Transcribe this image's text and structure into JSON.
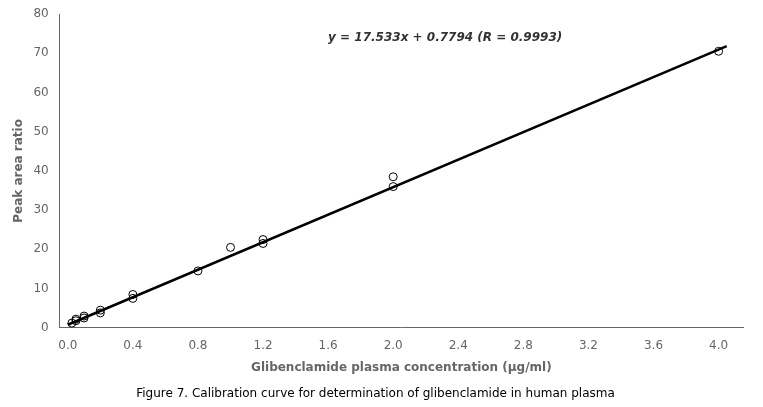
{
  "chart_data": {
    "type": "scatter",
    "title": "Figure 7. Calibration curve for determination of glibenclamide in human plasma",
    "xlabel": "Glibenclamide plasma concentration (μg/ml)",
    "ylabel": "Peak area ratio",
    "annotations": [
      {
        "text": "y = 17.533x + 0.7794 (R = 0.9993)",
        "x": 1.6,
        "y": 73
      }
    ],
    "series": [
      {
        "type": "line",
        "color": "#000000",
        "line_style": "solid",
        "x": [
          0,
          4.05
        ],
        "values": [
          0.7794,
          71.78805
        ]
      },
      {
        "type": "scatter",
        "color": "#000000",
        "marker": "circle",
        "x": [
          0.025,
          0.05,
          0.05,
          0.1,
          0.1,
          0.2,
          0.2,
          0.4,
          0.4,
          0.8,
          1.0,
          1.2,
          1.2,
          2.0,
          2.0,
          4.0
        ],
        "values": [
          1.2,
          1.8,
          2.2,
          2.5,
          3.0,
          3.8,
          4.5,
          7.5,
          8.5,
          14.5,
          20.5,
          21.5,
          22.5,
          36.0,
          38.5,
          70.5
        ]
      }
    ],
    "xlim": [
      -0.05,
      4.15
    ],
    "ylim": [
      0,
      80
    ],
    "xticks": [
      {
        "value": 0,
        "label": "0.0"
      },
      0.4,
      0.8,
      1.2,
      1.6,
      {
        "value": 2,
        "label": "2.0"
      },
      2.4,
      2.8,
      3.2,
      3.6,
      {
        "value": 4,
        "label": "4.0"
      }
    ],
    "yticks": [
      0,
      10,
      20,
      30,
      40,
      50,
      60,
      70,
      80
    ],
    "grid": false
  }
}
